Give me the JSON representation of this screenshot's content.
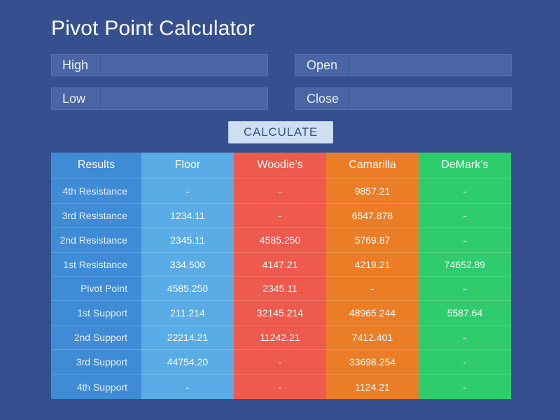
{
  "page": {
    "title": "Pivot Point Calculator"
  },
  "inputs": {
    "high": {
      "label": "High",
      "value": ""
    },
    "low": {
      "label": "Low",
      "value": ""
    },
    "open": {
      "label": "Open",
      "value": ""
    },
    "close": {
      "label": "Close",
      "value": ""
    }
  },
  "calculate_label": "CALCULATE",
  "table": {
    "headers": [
      "Results",
      "Floor",
      "Woodie’s",
      "Camarilla",
      "DeMark’s"
    ],
    "rows": [
      {
        "label": "4th Resistance",
        "floor": "-",
        "woodie": "-",
        "camarilla": "9857.21",
        "demark": "-"
      },
      {
        "label": "3rd Resistance",
        "floor": "1234.11",
        "woodie": "-",
        "camarilla": "6547.878",
        "demark": "-"
      },
      {
        "label": "2nd Resistance",
        "floor": "2345.11",
        "woodie": "4585.250",
        "camarilla": "5769.87",
        "demark": "-"
      },
      {
        "label": "1st Resistance",
        "floor": "334.500",
        "woodie": "4147.21",
        "camarilla": "4219.21",
        "demark": "74652.89"
      },
      {
        "label": "Pivot Point",
        "floor": "4585.250",
        "woodie": "2345.11",
        "camarilla": "-",
        "demark": "-"
      },
      {
        "label": "1st Support",
        "floor": "211.214",
        "woodie": "32145.214",
        "camarilla": "48965.244",
        "demark": "5587.64"
      },
      {
        "label": "2nd Support",
        "floor": "22214.21",
        "woodie": "11242.21",
        "camarilla": "7412.401",
        "demark": "-"
      },
      {
        "label": "3rd Support",
        "floor": "44754.20",
        "woodie": "-",
        "camarilla": "33698.254",
        "demark": "-"
      },
      {
        "label": "4th Support",
        "floor": "-",
        "woodie": "-",
        "camarilla": "1124.21",
        "demark": "-"
      }
    ]
  },
  "colors": {
    "background": "#36508f",
    "results": "#3f8bd6",
    "floor": "#5aace6",
    "woodie": "#ee5a4d",
    "camarilla": "#ec7d27",
    "demark": "#2fcc6d",
    "button": "#cfdff2"
  }
}
